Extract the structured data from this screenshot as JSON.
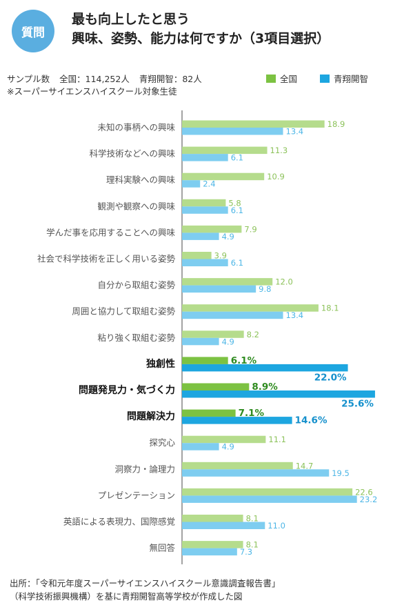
{
  "badge": "質問",
  "title": {
    "line1": "最も向上したと思う",
    "line2": "興味、姿勢、能力は何ですか（3項目選択）"
  },
  "sample": {
    "label": "サンプル数",
    "national": "全国：114,252人",
    "school": "青翔開智：82人"
  },
  "note": "※スーパーサイエンスハイスクール対象生徒",
  "source": {
    "line1": "出所：「令和元年度スーパーサイエンスハイスクール意識調査報告書」",
    "line2": "（科学技術振興機構）を基に青翔開智高等学校が作成した図"
  },
  "colors": {
    "national": "#b5dc8c",
    "national_highlight": "#7cc242",
    "school": "#7ecdf0",
    "school_highlight": "#1da6e0",
    "badge": "#5aaee0"
  },
  "chart_data": {
    "type": "bar",
    "orientation": "horizontal",
    "categories": [
      "未知の事柄への興味",
      "科学技術などへの興味",
      "理科実験への興味",
      "観測や観察への興味",
      "学んだ事を応用することへの興味",
      "社会で科学技術を正しく用いる姿勢",
      "自分から取組む姿勢",
      "周囲と協力して取組む姿勢",
      "粘り強く取組む姿勢",
      "独創性",
      "問題発見力・気づく力",
      "問題解決力",
      "探究心",
      "洞察力・論理力",
      "プレゼンテーション",
      "英語による表現力、国際感覚",
      "無回答"
    ],
    "highlighted": [
      "独創性",
      "問題発見力・気づく力",
      "問題解決力"
    ],
    "series": [
      {
        "name": "全国",
        "values": [
          18.9,
          11.3,
          10.9,
          5.8,
          7.9,
          3.9,
          12.0,
          18.1,
          8.2,
          6.1,
          8.9,
          7.1,
          11.1,
          14.7,
          22.6,
          8.1,
          8.1
        ]
      },
      {
        "name": "青翔開智",
        "values": [
          13.4,
          6.1,
          2.4,
          6.1,
          4.9,
          6.1,
          9.8,
          13.4,
          4.9,
          22.0,
          25.6,
          14.6,
          4.9,
          19.5,
          23.2,
          11.0,
          7.3
        ]
      }
    ],
    "highlight_unit": "%",
    "xlim": [
      0,
      26
    ],
    "legend_position": "top"
  }
}
